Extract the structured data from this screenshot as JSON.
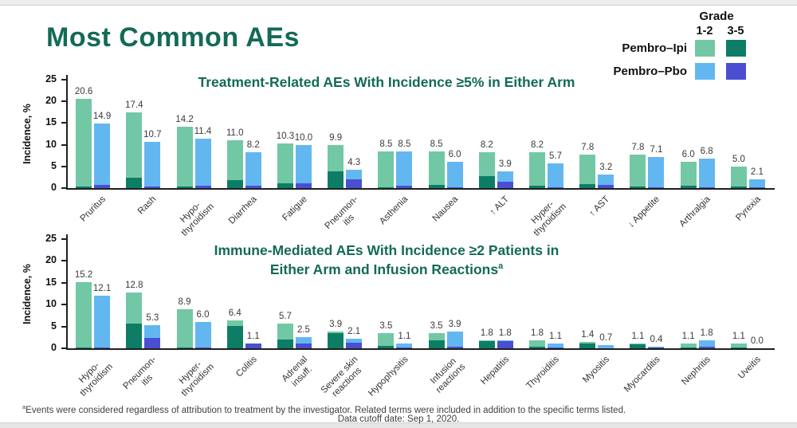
{
  "slide": {
    "title": "Most Common AEs",
    "footnote_marker": "a",
    "footnote_line1": "Events were considered regardless of attribution to treatment by the investigator. Related terms were included in addition to the specific terms listed.",
    "footnote_line2": "Data cutoff date: Sep 1, 2020."
  },
  "legend": {
    "grade_label": "Grade",
    "columns": [
      "1-2",
      "3-5"
    ],
    "rows": [
      {
        "label": "Pembro–Ipi",
        "swatches": [
          "ipi_grade12",
          "ipi_grade35"
        ]
      },
      {
        "label": "Pembro–Pbo",
        "swatches": [
          "pbo_grade12",
          "pbo_grade35"
        ]
      }
    ]
  },
  "colors": {
    "ipi_grade12": "#72c8a5",
    "ipi_grade35": "#0d7d66",
    "pbo_grade12": "#63b7f1",
    "pbo_grade35": "#4a4fd2",
    "title_green": "#136a57"
  },
  "chart_data": [
    {
      "type": "bar",
      "title": "Treatment-Related AEs With Incidence ≥5% in Either Arm",
      "ylabel": "Incidence, %",
      "ylim": [
        0,
        25
      ],
      "yticks": [
        0,
        5,
        10,
        15,
        20,
        25
      ],
      "grid": false,
      "legend_position": "top-right",
      "series_names": [
        "Pembro–Ipi Grade 1-2",
        "Pembro–Ipi Grade 3-5",
        "Pembro–Pbo Grade 1-2",
        "Pembro–Pbo Grade 3-5"
      ],
      "categories": [
        {
          "label": "Pruritus",
          "ipi": {
            "total": 20.6,
            "grade35": 0.4
          },
          "pbo": {
            "total": 14.9,
            "grade35": 0.8
          }
        },
        {
          "label": "Rash",
          "ipi": {
            "total": 17.4,
            "grade35": 2.4
          },
          "pbo": {
            "total": 10.7,
            "grade35": 0.3
          }
        },
        {
          "label": "Hypo-\nthyroidism",
          "ipi": {
            "total": 14.2,
            "grade35": 0.4
          },
          "pbo": {
            "total": 11.4,
            "grade35": 0.5
          }
        },
        {
          "label": "Diarrhea",
          "ipi": {
            "total": 11.0,
            "grade35": 1.8
          },
          "pbo": {
            "total": 8.2,
            "grade35": 0.5
          }
        },
        {
          "label": "Fatigue",
          "ipi": {
            "total": 10.3,
            "grade35": 1.1
          },
          "pbo": {
            "total": 10.0,
            "grade35": 1.1
          }
        },
        {
          "label": "Pneumon-\nitis",
          "ipi": {
            "total": 9.9,
            "grade35": 3.9
          },
          "pbo": {
            "total": 4.3,
            "grade35": 2.0
          }
        },
        {
          "label": "Asthenia",
          "ipi": {
            "total": 8.5,
            "grade35": 0.2
          },
          "pbo": {
            "total": 8.5,
            "grade35": 0.5
          }
        },
        {
          "label": "Nausea",
          "ipi": {
            "total": 8.5,
            "grade35": 0.7
          },
          "pbo": {
            "total": 6.0,
            "grade35": 0.2
          }
        },
        {
          "label": "↑ ALT",
          "ipi": {
            "total": 8.2,
            "grade35": 2.7
          },
          "pbo": {
            "total": 3.9,
            "grade35": 1.5
          }
        },
        {
          "label": "Hyper-\nthyroidism",
          "ipi": {
            "total": 8.2,
            "grade35": 0.5
          },
          "pbo": {
            "total": 5.7,
            "grade35": 0.1
          }
        },
        {
          "label": "↑ AST",
          "ipi": {
            "total": 7.8,
            "grade35": 0.9
          },
          "pbo": {
            "total": 3.2,
            "grade35": 0.8
          }
        },
        {
          "label": "↓ Appetite",
          "ipi": {
            "total": 7.8,
            "grade35": 0.4
          },
          "pbo": {
            "total": 7.1,
            "grade35": 0.1
          }
        },
        {
          "label": "Arthralgia",
          "ipi": {
            "total": 6.0,
            "grade35": 0.6
          },
          "pbo": {
            "total": 6.8,
            "grade35": 0.1
          }
        },
        {
          "label": "Pyrexia",
          "ipi": {
            "total": 5.0,
            "grade35": 0.4
          },
          "pbo": {
            "total": 2.1,
            "grade35": 0.1
          }
        }
      ]
    },
    {
      "type": "bar",
      "title": "Immune-Mediated AEs With Incidence ≥2 Patients in Either Arm and Infusion Reactionsᵃ",
      "title_lines": [
        "Immune-Mediated AEs With Incidence ≥2 Patients in",
        "Either Arm and Infusion Reactions"
      ],
      "title_marker": "a",
      "ylabel": "Incidence, %",
      "ylim": [
        0,
        25
      ],
      "yticks": [
        0,
        5,
        10,
        15,
        20,
        25
      ],
      "grid": false,
      "series_names": [
        "Pembro–Ipi Grade 1-2",
        "Pembro–Ipi Grade 3-5",
        "Pembro–Pbo Grade 1-2",
        "Pembro–Pbo Grade 3-5"
      ],
      "categories": [
        {
          "label": "Hypo-\nthyroidism",
          "ipi": {
            "total": 15.2,
            "grade35": 0.2
          },
          "pbo": {
            "total": 12.1,
            "grade35": 0.2
          }
        },
        {
          "label": "Pneumon-\nitis",
          "ipi": {
            "total": 12.8,
            "grade35": 5.7
          },
          "pbo": {
            "total": 5.3,
            "grade35": 2.4
          }
        },
        {
          "label": "Hyper-\nthyroidism",
          "ipi": {
            "total": 8.9,
            "grade35": 0.2
          },
          "pbo": {
            "total": 6.0,
            "grade35": 0.1
          }
        },
        {
          "label": "Colitis",
          "ipi": {
            "total": 6.4,
            "grade35": 5.1
          },
          "pbo": {
            "total": 1.1,
            "grade35": 1.1
          }
        },
        {
          "label": "Adrenal\ninsuff.",
          "ipi": {
            "total": 5.7,
            "grade35": 2.0
          },
          "pbo": {
            "total": 2.5,
            "grade35": 1.1
          }
        },
        {
          "label": "Severe skin\nreactions",
          "ipi": {
            "total": 3.9,
            "grade35": 3.5
          },
          "pbo": {
            "total": 2.1,
            "grade35": 1.3
          }
        },
        {
          "label": "Hypophysitis",
          "ipi": {
            "total": 3.5,
            "grade35": 0.6
          },
          "pbo": {
            "total": 1.1,
            "grade35": 0.2
          }
        },
        {
          "label": "Infusion\nreactions",
          "ipi": {
            "total": 3.5,
            "grade35": 1.8
          },
          "pbo": {
            "total": 3.9,
            "grade35": 0.4
          }
        },
        {
          "label": "Hepatitis",
          "ipi": {
            "total": 1.8,
            "grade35": 1.6
          },
          "pbo": {
            "total": 1.8,
            "grade35": 1.6
          }
        },
        {
          "label": "Thyroiditis",
          "ipi": {
            "total": 1.8,
            "grade35": 0.3
          },
          "pbo": {
            "total": 1.1,
            "grade35": 0.1
          }
        },
        {
          "label": "Myositis",
          "ipi": {
            "total": 1.4,
            "grade35": 1.1
          },
          "pbo": {
            "total": 0.7,
            "grade35": 0.0
          }
        },
        {
          "label": "Myocarditis",
          "ipi": {
            "total": 1.1,
            "grade35": 1.0
          },
          "pbo": {
            "total": 0.4,
            "grade35": 0.1
          }
        },
        {
          "label": "Nephritis",
          "ipi": {
            "total": 1.1,
            "grade35": 0.2
          },
          "pbo": {
            "total": 1.8,
            "grade35": 0.4
          }
        },
        {
          "label": "Uveitis",
          "ipi": {
            "total": 1.1,
            "grade35": 0.2
          },
          "pbo": {
            "total": 0.0,
            "grade35": 0.0
          }
        }
      ]
    }
  ]
}
